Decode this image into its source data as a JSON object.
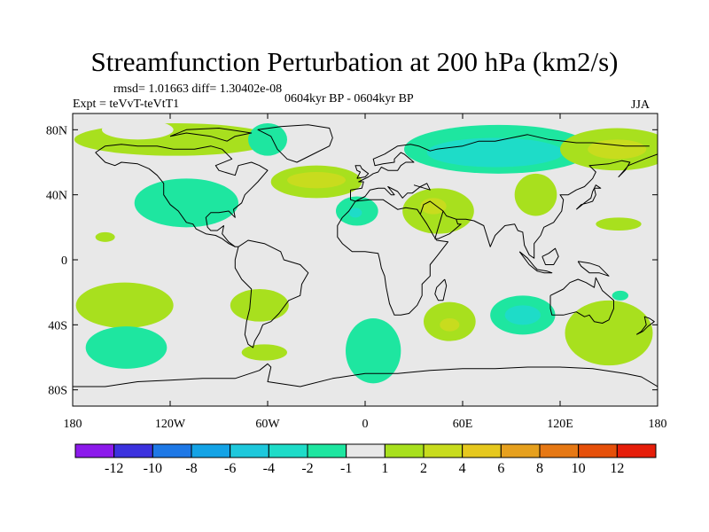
{
  "title": "Streamfunction Perturbation at 200 hPa (km2/s)",
  "stats": "rmsd= 1.01663 diff= 1.30402e-08",
  "experiment": "Expt = teVvT-teVtT1",
  "period": "0604kyr BP - 0604kyr BP",
  "season": "JJA",
  "chart_data": {
    "type": "contour-map",
    "field": "200 hPa streamfunction perturbation",
    "units": "km2/s",
    "x_range": [
      -180,
      180
    ],
    "y_range": [
      -90,
      90
    ],
    "x_ticks": [
      {
        "value": -180,
        "label": "180"
      },
      {
        "value": -120,
        "label": "120W"
      },
      {
        "value": -60,
        "label": "60W"
      },
      {
        "value": 0,
        "label": "0"
      },
      {
        "value": 60,
        "label": "60E"
      },
      {
        "value": 120,
        "label": "120E"
      },
      {
        "value": 180,
        "label": "180"
      }
    ],
    "y_ticks": [
      {
        "value": 80,
        "label": "80N"
      },
      {
        "value": 40,
        "label": "40N"
      },
      {
        "value": 0,
        "label": "0"
      },
      {
        "value": -40,
        "label": "40S"
      },
      {
        "value": -80,
        "label": "80S"
      }
    ],
    "colorbar": {
      "labels": [
        "-12",
        "-10",
        "-8",
        "-6",
        "-4",
        "-2",
        "-1",
        "1",
        "2",
        "4",
        "6",
        "8",
        "10",
        "12"
      ],
      "colors": [
        "#8c1aeb",
        "#3c32de",
        "#1e78e6",
        "#14a3e6",
        "#1ec8dc",
        "#1edcc8",
        "#1ee6a0",
        "#e8e8e8",
        "#a8e01e",
        "#c8dc1e",
        "#e6c81e",
        "#e6a01e",
        "#e67814",
        "#e6500a",
        "#e61e0a"
      ]
    },
    "regions": [
      {
        "lon": -117,
        "lat": 74,
        "rx": 62,
        "ry": 10,
        "bin": "1 to 2",
        "color": "#a8e01e"
      },
      {
        "lon": -140,
        "lat": 80,
        "rx": 22,
        "ry": 6,
        "bin": "-1 to 1",
        "color": "#e8e8e8"
      },
      {
        "lon": -110,
        "lat": 35,
        "rx": 32,
        "ry": 15,
        "bin": "-2 to -1",
        "color": "#1ee6a0"
      },
      {
        "lon": -160,
        "lat": 14,
        "rx": 6,
        "ry": 3,
        "bin": "1 to 2",
        "color": "#a8e01e"
      },
      {
        "lon": -60,
        "lat": 74,
        "rx": 12,
        "ry": 10,
        "bin": "-2 to -1",
        "color": "#1ee6a0"
      },
      {
        "lon": -30,
        "lat": 48,
        "rx": 28,
        "ry": 10,
        "bin": "1 to 2",
        "color": "#a8e01e"
      },
      {
        "lon": -30,
        "lat": 49,
        "rx": 18,
        "ry": 5,
        "bin": "2 to 4",
        "color": "#c8dc1e"
      },
      {
        "lon": -5,
        "lat": 30,
        "rx": 13,
        "ry": 9,
        "bin": "-2 to -1",
        "color": "#1ee6a0"
      },
      {
        "lon": -6,
        "lat": 29,
        "rx": 4,
        "ry": 3,
        "bin": "-4 to -2",
        "color": "#1edcc8"
      },
      {
        "lon": 45,
        "lat": 30,
        "rx": 22,
        "ry": 14,
        "bin": "1 to 2",
        "color": "#a8e01e"
      },
      {
        "lon": 42,
        "lat": 33,
        "rx": 8,
        "ry": 5,
        "bin": "2 to 4",
        "color": "#c8dc1e"
      },
      {
        "lon": 82,
        "lat": 68,
        "rx": 58,
        "ry": 15,
        "bin": "-2 to -1",
        "color": "#1ee6a0"
      },
      {
        "lon": 80,
        "lat": 66,
        "rx": 42,
        "ry": 9,
        "bin": "-4 to -2",
        "color": "#1edcc8"
      },
      {
        "lon": 155,
        "lat": 68,
        "rx": 35,
        "ry": 13,
        "bin": "1 to 2",
        "color": "#a8e01e"
      },
      {
        "lon": 155,
        "lat": 68,
        "rx": 18,
        "ry": 6,
        "bin": "2 to 4",
        "color": "#c8dc1e"
      },
      {
        "lon": 105,
        "lat": 40,
        "rx": 13,
        "ry": 13,
        "bin": "1 to 2",
        "color": "#a8e01e"
      },
      {
        "lon": 156,
        "lat": 22,
        "rx": 14,
        "ry": 4,
        "bin": "1 to 2",
        "color": "#a8e01e"
      },
      {
        "lon": -148,
        "lat": -28,
        "rx": 30,
        "ry": 14,
        "bin": "1 to 2",
        "color": "#a8e01e"
      },
      {
        "lon": -65,
        "lat": -28,
        "rx": 18,
        "ry": 10,
        "bin": "1 to 2",
        "color": "#a8e01e"
      },
      {
        "lon": -62,
        "lat": -57,
        "rx": 14,
        "ry": 5,
        "bin": "1 to 2",
        "color": "#a8e01e"
      },
      {
        "lon": -147,
        "lat": -54,
        "rx": 25,
        "ry": 13,
        "bin": "-2 to -1",
        "color": "#1ee6a0"
      },
      {
        "lon": 5,
        "lat": -56,
        "rx": 17,
        "ry": 20,
        "bin": "-2 to -1",
        "color": "#1ee6a0"
      },
      {
        "lon": 52,
        "lat": -38,
        "rx": 16,
        "ry": 12,
        "bin": "1 to 2",
        "color": "#a8e01e"
      },
      {
        "lon": 52,
        "lat": -40,
        "rx": 6,
        "ry": 4,
        "bin": "2 to 4",
        "color": "#c8dc1e"
      },
      {
        "lon": 97,
        "lat": -34,
        "rx": 20,
        "ry": 12,
        "bin": "-2 to -1",
        "color": "#1ee6a0"
      },
      {
        "lon": 97,
        "lat": -34,
        "rx": 11,
        "ry": 6,
        "bin": "-4 to -2",
        "color": "#1edcc8"
      },
      {
        "lon": 150,
        "lat": -45,
        "rx": 27,
        "ry": 20,
        "bin": "1 to 2",
        "color": "#a8e01e"
      },
      {
        "lon": 157,
        "lat": -22,
        "rx": 5,
        "ry": 3,
        "bin": "-2 to -1",
        "color": "#1ee6a0"
      }
    ]
  }
}
